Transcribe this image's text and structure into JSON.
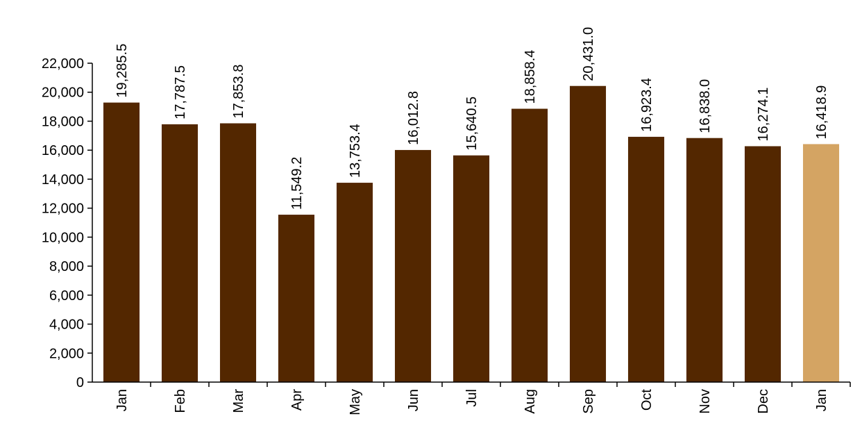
{
  "chart_data": {
    "type": "bar",
    "title": "",
    "xlabel": "",
    "ylabel": "",
    "ylim": [
      0,
      22000
    ],
    "yticks": [
      0,
      2000,
      4000,
      6000,
      8000,
      10000,
      12000,
      14000,
      16000,
      18000,
      20000,
      22000
    ],
    "ytick_labels": [
      "0",
      "2,000",
      "4,000",
      "6,000",
      "8,000",
      "10,000",
      "12,000",
      "14,000",
      "16,000",
      "18,000",
      "20,000",
      "22,000"
    ],
    "grid": false,
    "legend": "none",
    "categories": [
      "Jan",
      "Feb",
      "Mar",
      "Apr",
      "May",
      "Jun",
      "Jul",
      "Aug",
      "Sep",
      "Oct",
      "Nov",
      "Dec",
      "Jan"
    ],
    "values": [
      19285.5,
      17787.5,
      17853.8,
      11549.2,
      13753.4,
      16012.8,
      15640.5,
      18858.4,
      20431.0,
      16923.4,
      16838.0,
      16274.1,
      16418.9
    ],
    "data_labels": [
      "19,285.5",
      "17,787.5",
      "17,853.8",
      "11,549.2",
      "13,753.4",
      "16,012.8",
      "15,640.5",
      "18,858.4",
      "20,431.0",
      "16,923.4",
      "16,838.0",
      "16,274.1",
      "16,418.9"
    ],
    "colors": {
      "bar": "#532700",
      "highlight": "#D4A463",
      "axis": "#000000"
    },
    "highlight_index": 12
  }
}
